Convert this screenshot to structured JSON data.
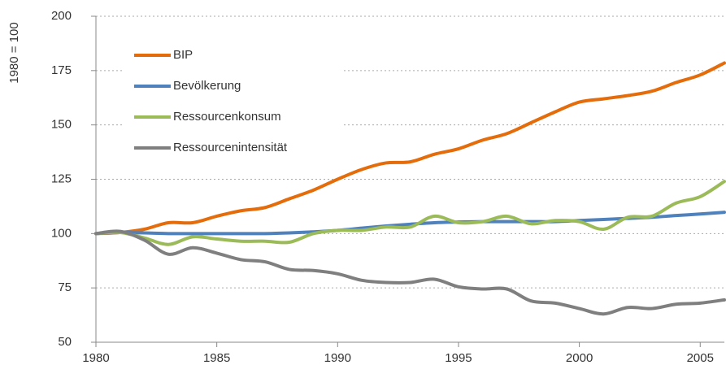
{
  "chart_data": {
    "type": "line",
    "y_label": "1980 = 100",
    "x": [
      1980,
      1981,
      1982,
      1983,
      1984,
      1985,
      1986,
      1987,
      1988,
      1989,
      1990,
      1991,
      1992,
      1993,
      1994,
      1995,
      1996,
      1997,
      1998,
      1999,
      2000,
      2001,
      2002,
      2003,
      2004,
      2005,
      2006
    ],
    "series": [
      {
        "name": "BIP",
        "color": "#e46c0a",
        "values": [
          100,
          100.5,
          102,
          105,
          105,
          108,
          110.5,
          112,
          116,
          120,
          125,
          129.5,
          132.5,
          133,
          136.5,
          139,
          143,
          146,
          151,
          156,
          160.5,
          162,
          163.5,
          165.5,
          169.5,
          173,
          178.5
        ]
      },
      {
        "name": "Bevölkerung",
        "color": "#4f81bd",
        "values": [
          100,
          100.5,
          100.3,
          100,
          100,
          100,
          100,
          100,
          100.3,
          100.8,
          101.5,
          102.5,
          103.5,
          104.3,
          105,
          105.3,
          105.5,
          105.5,
          105.5,
          105.5,
          106,
          106.5,
          107,
          107.5,
          108.3,
          109,
          109.8
        ]
      },
      {
        "name": "Ressourcenkonsum",
        "color": "#9bbb59",
        "values": [
          100,
          100.5,
          98,
          95,
          98.5,
          97.5,
          96.5,
          96.5,
          96,
          100,
          101.5,
          101.5,
          103,
          103,
          108,
          105,
          105.5,
          108,
          104.5,
          106,
          105.5,
          102,
          107.5,
          108,
          114,
          117,
          124
        ]
      },
      {
        "name": "Ressourcenintensität",
        "color": "#7f7f7f",
        "values": [
          100,
          101,
          97,
          90.5,
          93.5,
          91,
          88,
          87,
          83.5,
          83,
          81.5,
          78.5,
          77.5,
          77.5,
          79,
          75.5,
          74.5,
          74.5,
          69,
          68,
          65.5,
          63,
          66,
          65.5,
          67.5,
          68,
          69.5
        ]
      }
    ],
    "xlim": [
      1980,
      2006
    ],
    "xticks": [
      1980,
      1985,
      1990,
      1995,
      2000,
      2005
    ],
    "ylim": [
      50,
      200
    ],
    "yticks": [
      50,
      75,
      100,
      125,
      150,
      175,
      200
    ],
    "grid": true,
    "legend": "upper left"
  }
}
